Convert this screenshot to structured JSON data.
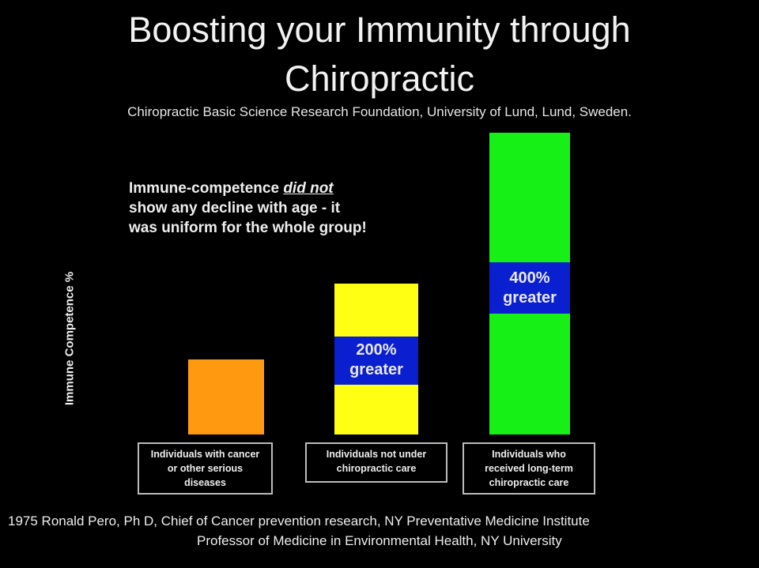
{
  "chart_data": {
    "type": "bar",
    "title": "Boosting your Immunity through Chiropractic",
    "title_lines": [
      "Boosting your Immunity through",
      "Chiropractic"
    ],
    "subtitle": "Chiropractic Basic Science Research Foundation, University of Lund, Lund, Sweden.",
    "xlabel": "",
    "ylabel": "Immune Competence %",
    "grid": false,
    "categories": [
      "Individuals with cancer or other serious diseases",
      "Individuals not under chiropractic care",
      "Individuals who received long-term chiropractic care"
    ],
    "category_lines": [
      [
        "Individuals with cancer",
        "or other serious",
        "diseases"
      ],
      [
        "Individuals not under",
        "chiropractic care"
      ],
      [
        "Individuals who",
        "received long-term",
        "chiropractic care"
      ]
    ],
    "values": [
      1,
      2,
      4
    ],
    "colors": [
      "#ff9a10",
      "#ffff14",
      "#16f016"
    ],
    "band_color": "#0a1fd0",
    "data_labels": [
      null,
      [
        "200%",
        "greater"
      ],
      [
        "400%",
        "greater"
      ]
    ],
    "annotation": {
      "line1_before": "Immune-competence ",
      "line1_emph": "did not",
      "line2": "show any decline with age - it",
      "line3": "was uniform for the whole group!"
    }
  },
  "footer": {
    "line1": "1975 Ronald Pero, Ph D, Chief of Cancer prevention research, NY Preventative Medicine Institute",
    "line2": "Professor of Medicine in Environmental Health, NY University"
  }
}
